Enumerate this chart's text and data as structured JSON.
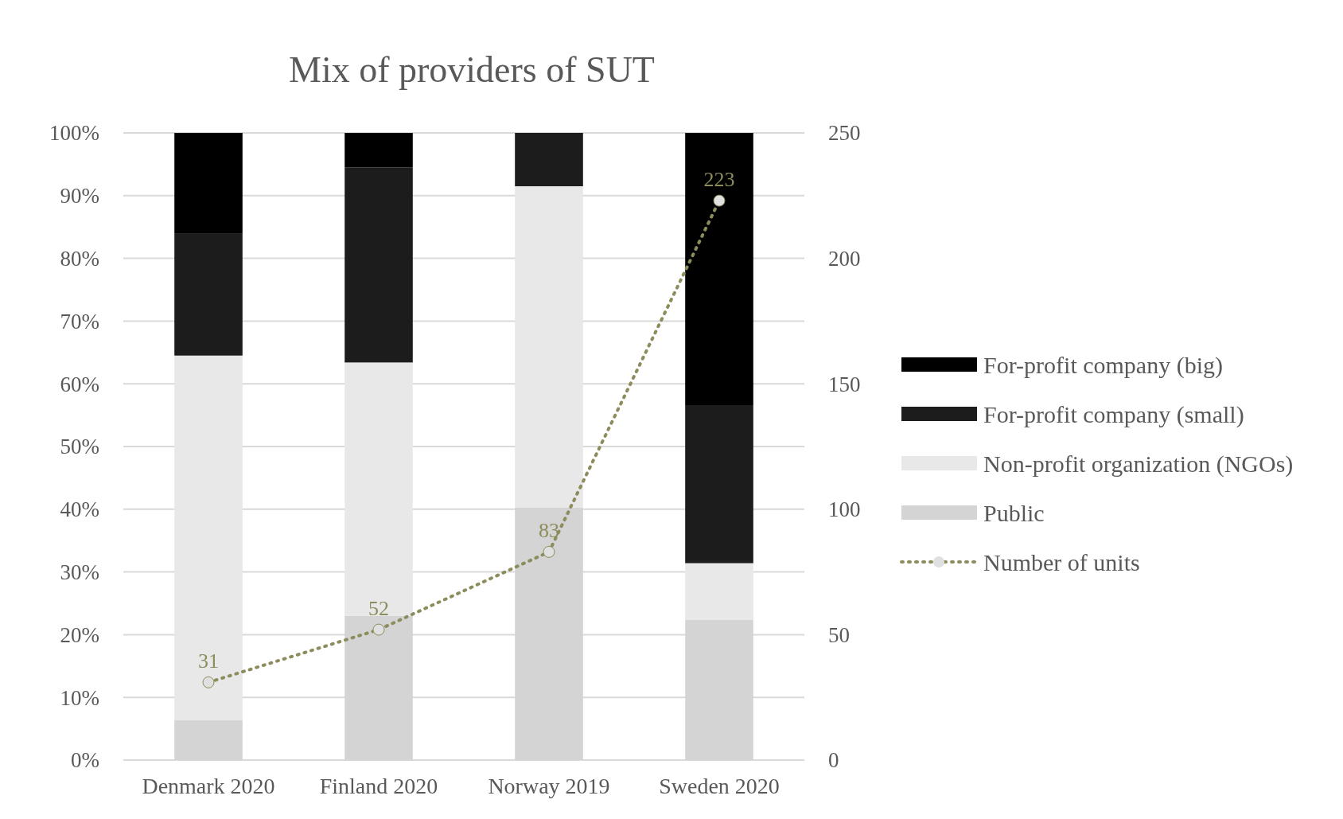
{
  "chart_data": {
    "type": "bar",
    "title": "Mix of providers of SUT",
    "categories": [
      "Denmark 2020",
      "Finland 2020",
      "Norway 2019",
      "Sweden 2020"
    ],
    "stacked": true,
    "series": [
      {
        "name": "Public",
        "color": "#d4d4d4",
        "values": [
          6.4,
          23,
          40.3,
          22.4
        ]
      },
      {
        "name": "Non-profit organization (NGOs)",
        "color": "#e8e8e8",
        "values": [
          58.1,
          40.4,
          51.2,
          9
        ]
      },
      {
        "name": "For-profit company (small)",
        "color": "#1c1c1c",
        "values": [
          19.5,
          31.1,
          8.5,
          25.2
        ]
      },
      {
        "name": "For-profit company (big)",
        "color": "#000000",
        "values": [
          16,
          5.5,
          0,
          43.4
        ]
      },
      {
        "name": "Number of units",
        "type": "line",
        "axis": "y2",
        "color": "#8c8c5c",
        "values": [
          31,
          52,
          83,
          223
        ],
        "value_labels": [
          "31",
          "52",
          "83",
          "223"
        ],
        "marker": "circle",
        "line_style": "dotted"
      }
    ],
    "ylim": [
      0,
      100
    ],
    "yticks": [
      {
        "value": 0,
        "label": "0%"
      },
      {
        "value": 10,
        "label": "10%"
      },
      {
        "value": 20,
        "label": "20%"
      },
      {
        "value": 30,
        "label": "30%"
      },
      {
        "value": 40,
        "label": "40%"
      },
      {
        "value": 50,
        "label": "50%"
      },
      {
        "value": 60,
        "label": "60%"
      },
      {
        "value": 70,
        "label": "70%"
      },
      {
        "value": 80,
        "label": "80%"
      },
      {
        "value": 90,
        "label": "90%"
      },
      {
        "value": 100,
        "label": "100%"
      }
    ],
    "y2lim": [
      0,
      250
    ],
    "y2ticks": [
      0,
      50,
      100,
      150,
      200,
      250
    ],
    "grid": "y",
    "legend": "right"
  }
}
